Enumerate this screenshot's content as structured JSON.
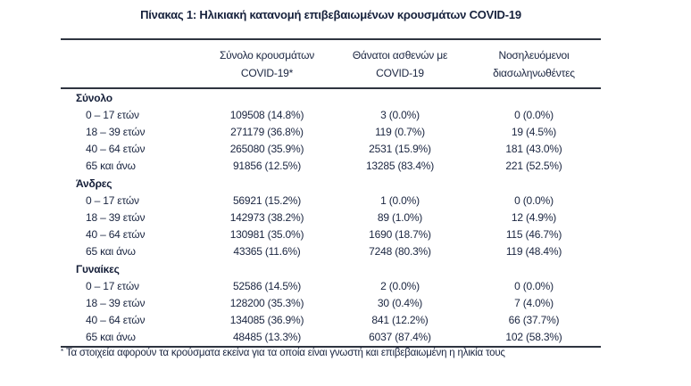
{
  "title": "Πίνακας 1: Ηλικιακή κατανομή επιβεβαιωμένων κρουσμάτων COVID-19",
  "colors": {
    "text": "#1a2540",
    "border": "#2e3440",
    "background": "#ffffff"
  },
  "table": {
    "col_headers": [
      {
        "line1": "Σύνολο κρουσμάτων",
        "line2": "COVID-19*"
      },
      {
        "line1": "Θάνατοι ασθενών με",
        "line2": "COVID-19"
      },
      {
        "line1": "Νοσηλευόμενοι",
        "line2": "διασωληνωθέντες"
      }
    ],
    "sections": [
      {
        "name": "Σύνολο",
        "rows": [
          {
            "label": "0 – 17 ετών",
            "values": [
              "109508 (14.8%)",
              "3 (0.0%)",
              "0 (0.0%)"
            ]
          },
          {
            "label": "18 – 39 ετών",
            "values": [
              "271179 (36.8%)",
              "119 (0.7%)",
              "19 (4.5%)"
            ]
          },
          {
            "label": "40 – 64 ετών",
            "values": [
              "265080 (35.9%)",
              "2531 (15.9%)",
              "181 (43.0%)"
            ]
          },
          {
            "label": "65 και άνω",
            "values": [
              "91856 (12.5%)",
              "13285 (83.4%)",
              "221 (52.5%)"
            ]
          }
        ]
      },
      {
        "name": "Άνδρες",
        "rows": [
          {
            "label": "0 – 17 ετών",
            "values": [
              "56921 (15.2%)",
              "1 (0.0%)",
              "0 (0.0%)"
            ]
          },
          {
            "label": "18 – 39 ετών",
            "values": [
              "142973 (38.2%)",
              "89 (1.0%)",
              "12 (4.9%)"
            ]
          },
          {
            "label": "40 – 64 ετών",
            "values": [
              "130981 (35.0%)",
              "1690 (18.7%)",
              "115 (46.7%)"
            ]
          },
          {
            "label": "65 και άνω",
            "values": [
              "43365 (11.6%)",
              "7248 (80.3%)",
              "119 (48.4%)"
            ]
          }
        ]
      },
      {
        "name": "Γυναίκες",
        "rows": [
          {
            "label": "0 – 17 ετών",
            "values": [
              "52586 (14.5%)",
              "2 (0.0%)",
              "0 (0.0%)"
            ]
          },
          {
            "label": "18 – 39 ετών",
            "values": [
              "128200 (35.3%)",
              "30 (0.4%)",
              "7 (4.0%)"
            ]
          },
          {
            "label": "40 – 64 ετών",
            "values": [
              "134085 (36.9%)",
              "841 (12.2%)",
              "66 (37.7%)"
            ]
          },
          {
            "label": "65 και άνω",
            "values": [
              "48485 (13.3%)",
              "6037 (87.4%)",
              "102 (58.3%)"
            ]
          }
        ]
      }
    ]
  },
  "footnote": {
    "marker": "*",
    "text": "Τα στοιχεία αφορούν τα κρούσματα εκείνα για τα οποία είναι γνωστή και επιβεβαιωμένη η ηλικία τους"
  }
}
